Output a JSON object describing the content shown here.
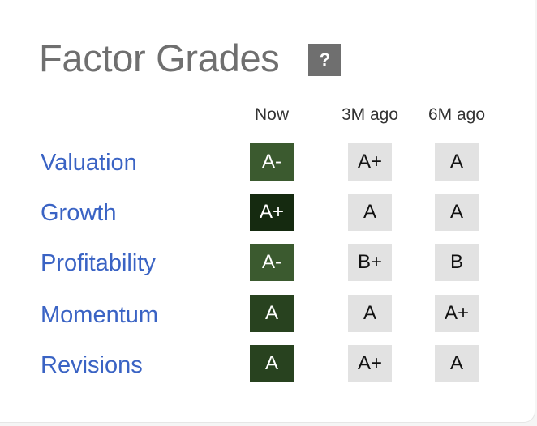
{
  "widget": {
    "title": "Factor Grades",
    "help_glyph": "?"
  },
  "columns": [
    "Now",
    "3M ago",
    "6M ago"
  ],
  "colors": {
    "label_link": "#3a63c4",
    "grade_A_minus": "#3b5a2f",
    "grade_A_plus": "#152a10",
    "grade_A": "#28421f",
    "past_bg": "#e2e2e2"
  },
  "rows": [
    {
      "label": "Valuation",
      "grades": [
        "A-",
        "A+",
        "A"
      ],
      "now_color": "#3b5a2f"
    },
    {
      "label": "Growth",
      "grades": [
        "A+",
        "A",
        "A"
      ],
      "now_color": "#152a10"
    },
    {
      "label": "Profitability",
      "grades": [
        "A-",
        "B+",
        "B"
      ],
      "now_color": "#3b5a2f"
    },
    {
      "label": "Momentum",
      "grades": [
        "A",
        "A",
        "A+"
      ],
      "now_color": "#28421f"
    },
    {
      "label": "Revisions",
      "grades": [
        "A",
        "A+",
        "A"
      ],
      "now_color": "#28421f"
    }
  ]
}
